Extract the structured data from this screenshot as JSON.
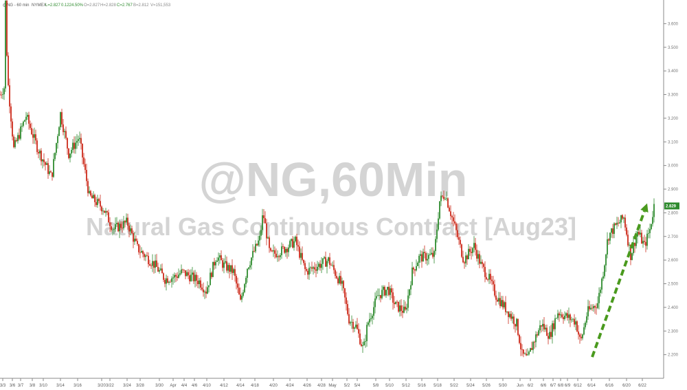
{
  "header": {
    "symbol": "@NG - 60 min",
    "exchange": "NYMEX",
    "last": "L=2.827",
    "change": "0.122",
    "change_pct": "4.50%",
    "open": "O=2.827",
    "high": "H=2.828",
    "close": "C=2.767",
    "bid": "B=2.812",
    "volume": "V=151,553"
  },
  "watermark": {
    "symbol_title": "@NG,60Min",
    "contract_title": "Natural Gas Continuous Contract [Aug23]"
  },
  "chart_data": {
    "type": "candlestick",
    "interval": "60 min",
    "x_axis": {
      "tick_labels": [
        "3/3",
        "3/6",
        "3/7",
        "3/8",
        "3/10",
        "3/14",
        "3/16",
        "3/20",
        "3/22",
        "3/24",
        "3/28",
        "3/30",
        "Apr",
        "4/4",
        "4/6",
        "4/10",
        "4/12",
        "4/14",
        "4/18",
        "4/20",
        "4/24",
        "4/26",
        "4/28",
        "May",
        "5/2",
        "5/4",
        "5/8",
        "5/10",
        "5/12",
        "5/16",
        "5/18",
        "5/22",
        "5/24",
        "5/26",
        "5/30",
        "Jun",
        "6/2",
        "6/6",
        "6/7",
        "6/8",
        "6/9",
        "6/12",
        "6/14",
        "6/16",
        "6/20",
        "6/22"
      ]
    },
    "y_axis": {
      "position": "right",
      "range": [
        2.1,
        3.7
      ],
      "tick_labels": [
        "3.600",
        "3.500",
        "3.400",
        "3.300",
        "3.200",
        "3.100",
        "3.000",
        "2.900",
        "2.800",
        "2.700",
        "2.600",
        "2.500",
        "2.400",
        "2.300",
        "2.200"
      ]
    },
    "grid": false,
    "last_price_label": "2.829",
    "up_color": "#2e8b2e",
    "down_color": "#cc2a1a",
    "path_anchors": [
      {
        "x": 0,
        "y": 3.3
      },
      {
        "x": 6,
        "y": 3.33
      },
      {
        "x": 8,
        "y": 3.69
      },
      {
        "x": 11,
        "y": 3.37
      },
      {
        "x": 20,
        "y": 3.07
      },
      {
        "x": 38,
        "y": 3.21
      },
      {
        "x": 55,
        "y": 3.07
      },
      {
        "x": 75,
        "y": 2.95
      },
      {
        "x": 88,
        "y": 3.22
      },
      {
        "x": 100,
        "y": 3.05
      },
      {
        "x": 115,
        "y": 3.12
      },
      {
        "x": 130,
        "y": 2.87
      },
      {
        "x": 150,
        "y": 2.82
      },
      {
        "x": 165,
        "y": 2.73
      },
      {
        "x": 185,
        "y": 2.76
      },
      {
        "x": 200,
        "y": 2.65
      },
      {
        "x": 225,
        "y": 2.58
      },
      {
        "x": 240,
        "y": 2.52
      },
      {
        "x": 255,
        "y": 2.53
      },
      {
        "x": 265,
        "y": 2.55
      },
      {
        "x": 290,
        "y": 2.51
      },
      {
        "x": 300,
        "y": 2.47
      },
      {
        "x": 315,
        "y": 2.62
      },
      {
        "x": 325,
        "y": 2.58
      },
      {
        "x": 340,
        "y": 2.55
      },
      {
        "x": 350,
        "y": 2.42
      },
      {
        "x": 360,
        "y": 2.57
      },
      {
        "x": 378,
        "y": 2.69
      },
      {
        "x": 383,
        "y": 2.8
      },
      {
        "x": 393,
        "y": 2.62
      },
      {
        "x": 410,
        "y": 2.64
      },
      {
        "x": 430,
        "y": 2.68
      },
      {
        "x": 445,
        "y": 2.55
      },
      {
        "x": 458,
        "y": 2.57
      },
      {
        "x": 478,
        "y": 2.6
      },
      {
        "x": 498,
        "y": 2.49
      },
      {
        "x": 508,
        "y": 2.35
      },
      {
        "x": 518,
        "y": 2.32
      },
      {
        "x": 529,
        "y": 2.22
      },
      {
        "x": 535,
        "y": 2.33
      },
      {
        "x": 550,
        "y": 2.45
      },
      {
        "x": 565,
        "y": 2.48
      },
      {
        "x": 575,
        "y": 2.41
      },
      {
        "x": 590,
        "y": 2.38
      },
      {
        "x": 600,
        "y": 2.55
      },
      {
        "x": 610,
        "y": 2.61
      },
      {
        "x": 632,
        "y": 2.62
      },
      {
        "x": 640,
        "y": 2.85
      },
      {
        "x": 648,
        "y": 2.88
      },
      {
        "x": 656,
        "y": 2.8
      },
      {
        "x": 664,
        "y": 2.72
      },
      {
        "x": 675,
        "y": 2.6
      },
      {
        "x": 690,
        "y": 2.66
      },
      {
        "x": 700,
        "y": 2.58
      },
      {
        "x": 712,
        "y": 2.52
      },
      {
        "x": 722,
        "y": 2.45
      },
      {
        "x": 740,
        "y": 2.38
      },
      {
        "x": 752,
        "y": 2.33
      },
      {
        "x": 760,
        "y": 2.2
      },
      {
        "x": 768,
        "y": 2.18
      },
      {
        "x": 776,
        "y": 2.25
      },
      {
        "x": 788,
        "y": 2.33
      },
      {
        "x": 800,
        "y": 2.28
      },
      {
        "x": 812,
        "y": 2.38
      },
      {
        "x": 825,
        "y": 2.36
      },
      {
        "x": 838,
        "y": 2.34
      },
      {
        "x": 845,
        "y": 2.25
      },
      {
        "x": 855,
        "y": 2.38
      },
      {
        "x": 870,
        "y": 2.42
      },
      {
        "x": 878,
        "y": 2.55
      },
      {
        "x": 885,
        "y": 2.7
      },
      {
        "x": 895,
        "y": 2.74
      },
      {
        "x": 908,
        "y": 2.78
      },
      {
        "x": 918,
        "y": 2.62
      },
      {
        "x": 928,
        "y": 2.72
      },
      {
        "x": 938,
        "y": 2.66
      },
      {
        "x": 946,
        "y": 2.73
      },
      {
        "x": 952,
        "y": 2.83
      }
    ],
    "trend_arrow": {
      "from": {
        "x": 862,
        "y": 2.19
      },
      "to": {
        "x": 942,
        "y": 2.84
      },
      "color": "#4a9a1e"
    }
  }
}
